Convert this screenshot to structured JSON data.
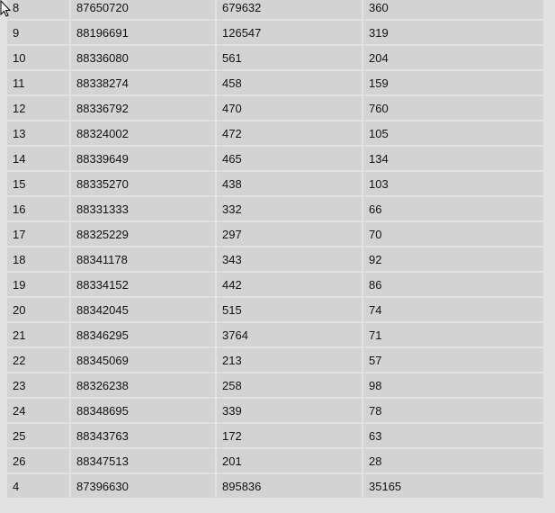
{
  "table": {
    "rows": [
      [
        "8",
        "87650720",
        "679632",
        "360"
      ],
      [
        "9",
        "88196691",
        "126547",
        "319"
      ],
      [
        "10",
        "88336080",
        "561",
        "204"
      ],
      [
        "11",
        "88338274",
        "458",
        "159"
      ],
      [
        "12",
        "88336792",
        "470",
        "760"
      ],
      [
        "13",
        "88324002",
        "472",
        "105"
      ],
      [
        "14",
        "88339649",
        "465",
        "134"
      ],
      [
        "15",
        "88335270",
        "438",
        "103"
      ],
      [
        "16",
        "88331333",
        "332",
        "66"
      ],
      [
        "17",
        "88325229",
        "297",
        "70"
      ],
      [
        "18",
        "88341178",
        "343",
        "92"
      ],
      [
        "19",
        "88334152",
        "442",
        "86"
      ],
      [
        "20",
        "88342045",
        "515",
        "74"
      ],
      [
        "21",
        "88346295",
        "3764",
        "71"
      ],
      [
        "22",
        "88345069",
        "213",
        "57"
      ],
      [
        "23",
        "88326238",
        "258",
        "98"
      ],
      [
        "24",
        "88348695",
        "339",
        "78"
      ],
      [
        "25",
        "88343763",
        "172",
        "63"
      ],
      [
        "26",
        "88347513",
        "201",
        "28"
      ],
      [
        "4",
        "87396630",
        "895836",
        "35165"
      ]
    ]
  },
  "colors": {
    "background": "#e1e1e1",
    "cell": "#d3d3d3"
  }
}
